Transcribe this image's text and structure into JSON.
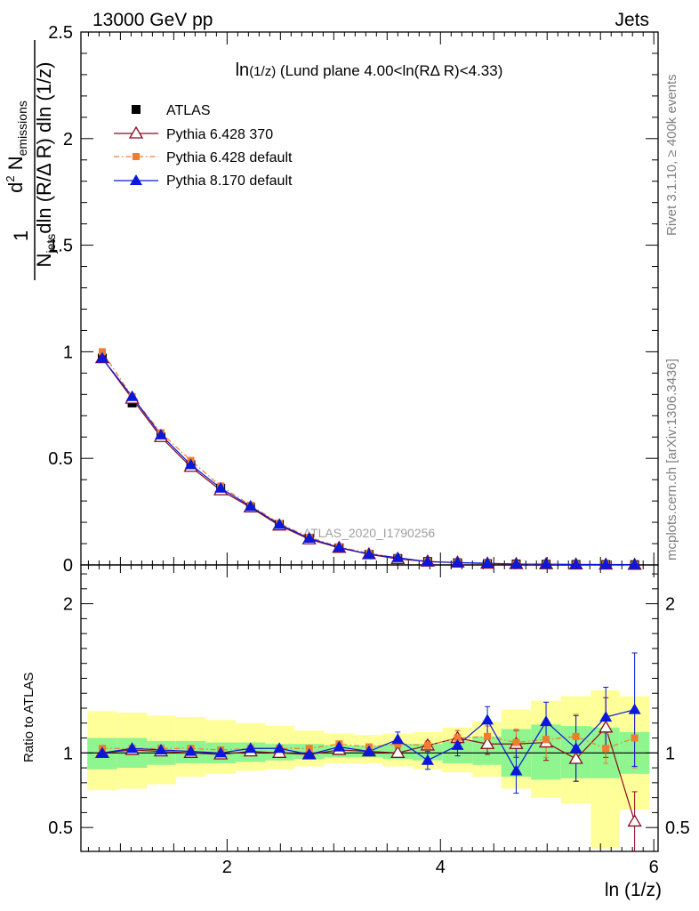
{
  "header": {
    "energy_label": "13000 GeV pp",
    "process_label": "Jets",
    "watermark": "ATLAS_2020_I1790256",
    "rivet_label": "Rivet 3.1.10, ≥ 400k events",
    "mcplots_label": "mcplots.cern.ch [arXiv:1306.3436]"
  },
  "colors": {
    "atlas": "#000000",
    "pythia6_370": "#8b0a1e",
    "pythia6_default": "#f07c30",
    "pythia8": "#0a17dc",
    "band_inner": "#8ff58f",
    "band_outer": "#ffff99"
  },
  "chart_data": [
    {
      "type": "line",
      "title": "ln(1/z) (Lund plane 4.00<ln(RΔ R)<4.33)",
      "title_main": "ln",
      "title_small": "(1/z)",
      "title_rest": " (Lund plane 4.00<ln(RΔ R)<4.33)",
      "ylabel": "1/N_jets dln (R/Δ R) dln (1/z) d² N_emissions",
      "ylabel_parts": {
        "one": "1",
        "nj_N": "N",
        "nj_sub": "jets",
        "nj_rest": "dln (R/Δ R) dln (1/z)",
        "num_d": "d",
        "num_sup": "2",
        "num_N": " N",
        "num_sub": "emissions"
      },
      "xlim": [
        0.63,
        6.04
      ],
      "ylim": [
        0,
        2.5
      ],
      "yticks": [
        {
          "v": 0,
          "label": "0"
        },
        {
          "v": 0.5,
          "label": "0.5"
        },
        {
          "v": 1,
          "label": "1"
        },
        {
          "v": 1.5,
          "label": "1.5"
        },
        {
          "v": 2,
          "label": "2"
        },
        {
          "v": 2.5,
          "label": "2.5"
        }
      ],
      "legend": {
        "placement": "top-left",
        "entries": [
          {
            "key": "atlas",
            "label": "ATLAS"
          },
          {
            "key": "p6_370",
            "label": "Pythia 6.428 370"
          },
          {
            "key": "p6_def",
            "label": "Pythia 6.428 default"
          },
          {
            "key": "p8",
            "label": "Pythia 8.170 default"
          }
        ]
      },
      "x": [
        0.83,
        1.11,
        1.38,
        1.66,
        1.94,
        2.22,
        2.49,
        2.77,
        3.05,
        3.33,
        3.6,
        3.88,
        4.16,
        4.44,
        4.71,
        4.99,
        5.27,
        5.55,
        5.82
      ],
      "series": [
        {
          "key": "atlas",
          "name": "ATLAS",
          "values": [
            0.97,
            0.76,
            0.6,
            0.47,
            0.36,
            0.27,
            0.19,
            0.125,
            0.08,
            0.05,
            0.03,
            0.016,
            0.01,
            0.006,
            0.004,
            0.003,
            0.002,
            0.0015,
            0.001
          ]
        },
        {
          "key": "p6_370",
          "name": "Pythia 6.428 370",
          "values": [
            0.97,
            0.78,
            0.6,
            0.46,
            0.35,
            0.27,
            0.185,
            0.12,
            0.08,
            0.05,
            0.028,
            0.016,
            0.011,
            0.006,
            0.004,
            0.003,
            0.002,
            0.0015,
            0.0005
          ]
        },
        {
          "key": "p6_def",
          "name": "Pythia 6.428 default",
          "values": [
            1.0,
            0.79,
            0.62,
            0.49,
            0.37,
            0.28,
            0.195,
            0.13,
            0.085,
            0.055,
            0.032,
            0.017,
            0.011,
            0.007,
            0.004,
            0.003,
            0.002,
            0.0015,
            0.001
          ]
        },
        {
          "key": "p8",
          "name": "Pythia 8.170 default",
          "values": [
            0.97,
            0.79,
            0.61,
            0.47,
            0.36,
            0.275,
            0.19,
            0.125,
            0.082,
            0.05,
            0.034,
            0.015,
            0.011,
            0.008,
            0.004,
            0.004,
            0.002,
            0.002,
            0.0015
          ]
        }
      ]
    },
    {
      "type": "line",
      "xlabel": "ln (1/z)",
      "ylabel": "Ratio to ATLAS",
      "xlim": [
        0.63,
        6.04
      ],
      "ylim": [
        0.34,
        2.26
      ],
      "xticks": [
        {
          "v": 2,
          "label": "2"
        },
        {
          "v": 4,
          "label": "4"
        },
        {
          "v": 6,
          "label": "6"
        }
      ],
      "yticks": [
        {
          "v": 0.5,
          "label": "0.5"
        },
        {
          "v": 1,
          "label": "1"
        },
        {
          "v": 2,
          "label": "2"
        }
      ],
      "bin_edges": [
        0.69,
        0.97,
        1.25,
        1.52,
        1.8,
        2.08,
        2.36,
        2.63,
        2.91,
        3.19,
        3.46,
        3.74,
        4.02,
        4.3,
        4.57,
        4.85,
        5.13,
        5.41,
        5.68,
        5.96
      ],
      "band_inner": {
        "lo": [
          0.89,
          0.9,
          0.92,
          0.93,
          0.93,
          0.94,
          0.95,
          0.96,
          0.97,
          0.97,
          0.96,
          0.95,
          0.93,
          0.92,
          0.84,
          0.82,
          0.83,
          0.83,
          0.86
        ],
        "hi": [
          1.1,
          1.1,
          1.08,
          1.08,
          1.07,
          1.07,
          1.06,
          1.06,
          1.05,
          1.05,
          1.06,
          1.06,
          1.08,
          1.11,
          1.16,
          1.19,
          1.18,
          1.17,
          1.14
        ]
      },
      "band_outer": {
        "lo": [
          0.75,
          0.76,
          0.79,
          0.84,
          0.86,
          0.88,
          0.89,
          0.91,
          0.93,
          0.93,
          0.91,
          0.89,
          0.87,
          0.84,
          0.76,
          0.7,
          0.66,
          0.36,
          0.62
        ],
        "hi": [
          1.28,
          1.27,
          1.25,
          1.24,
          1.22,
          1.2,
          1.18,
          1.15,
          1.13,
          1.12,
          1.13,
          1.14,
          1.17,
          1.21,
          1.29,
          1.35,
          1.38,
          1.42,
          1.38
        ]
      },
      "series": [
        {
          "key": "p6_370",
          "name": "Pythia 6.428 370",
          "values": [
            1.0,
            1.02,
            1.01,
            1.0,
            0.99,
            1.01,
            1.0,
            0.99,
            1.02,
            1.01,
            1.0,
            1.05,
            1.1,
            1.06,
            1.06,
            1.07,
            0.96,
            1.17,
            0.54
          ],
          "err": [
            0.01,
            0.01,
            0.01,
            0.01,
            0.01,
            0.01,
            0.01,
            0.01,
            0.02,
            0.02,
            0.03,
            0.03,
            0.05,
            0.07,
            0.09,
            0.12,
            0.15,
            0.2,
            0.2
          ]
        },
        {
          "key": "p6_def",
          "name": "Pythia 6.428 default",
          "values": [
            1.03,
            1.03,
            1.03,
            1.03,
            1.02,
            1.03,
            1.03,
            1.03,
            1.06,
            1.04,
            1.06,
            1.05,
            1.1,
            1.11,
            1.07,
            1.09,
            1.11,
            1.03,
            1.1
          ],
          "err": [
            0.01,
            0.01,
            0.01,
            0.01,
            0.01,
            0.01,
            0.01,
            0.01,
            0.02,
            0.02,
            0.03,
            0.03,
            0.05,
            0.07,
            0.09,
            0.12,
            0.15,
            0.1,
            0.2
          ]
        },
        {
          "key": "p8",
          "name": "Pythia 8.170 default",
          "values": [
            1.0,
            1.03,
            1.02,
            1.01,
            1.0,
            1.03,
            1.03,
            0.99,
            1.04,
            1.01,
            1.09,
            0.95,
            1.05,
            1.22,
            0.88,
            1.21,
            1.03,
            1.24,
            1.29
          ],
          "err": [
            0.01,
            0.01,
            0.01,
            0.01,
            0.01,
            0.01,
            0.02,
            0.02,
            0.03,
            0.03,
            0.05,
            0.06,
            0.07,
            0.09,
            0.15,
            0.13,
            0.22,
            0.2,
            0.38
          ]
        }
      ]
    }
  ]
}
